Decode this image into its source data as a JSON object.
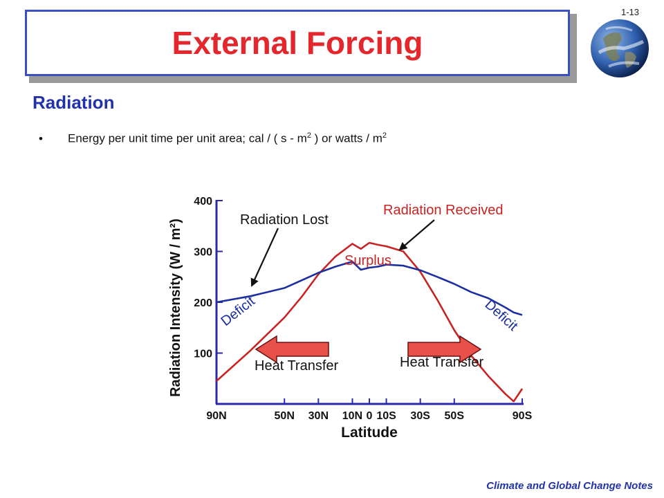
{
  "slide": {
    "title": "External Forcing",
    "number": "1-13",
    "subtitle": "Radiation",
    "bullet": {
      "text_a": "Energy per unit time per unit area; cal / ( s - m",
      "sup_a": "2",
      "text_b": " ) or watts / m",
      "sup_b": "2"
    },
    "footer": "Climate and Global Change Notes",
    "logo_icon": "earth-globe-icon"
  },
  "colors": {
    "title": "#e4262d",
    "title_border": "#3a4fc4",
    "subtitle": "#2233aa",
    "received": "#c82323",
    "lost": "#1c2f9e",
    "axis": "#2a2aa8",
    "arrow": "#e8504a"
  },
  "chart_data": {
    "type": "line",
    "xlabel": "Latitude",
    "ylabel": "Radiation Intensity (W / m²)",
    "ylim": [
      0,
      400
    ],
    "yticks": [
      "100",
      "200",
      "300",
      "400"
    ],
    "ytick_values": [
      100,
      200,
      300,
      400
    ],
    "x": [
      -90,
      -70,
      -50,
      -40,
      -30,
      -20,
      -10,
      -5,
      0,
      5,
      10,
      20,
      30,
      40,
      50,
      60,
      70,
      80,
      85,
      90
    ],
    "xticks": [
      "90N",
      "50N",
      "30N",
      "10N",
      "0",
      "10S",
      "30S",
      "50S",
      "90S"
    ],
    "xtick_values": [
      -90,
      -50,
      -30,
      -10,
      0,
      10,
      30,
      50,
      90
    ],
    "series": [
      {
        "name": "Radiation Received",
        "values": [
          45,
          105,
          170,
          210,
          255,
          290,
          315,
          305,
          317,
          313,
          310,
          300,
          260,
          205,
          145,
          95,
          55,
          20,
          5,
          30
        ]
      },
      {
        "name": "Radiation Lost",
        "values": [
          200,
          212,
          228,
          243,
          258,
          270,
          280,
          264,
          268,
          270,
          274,
          272,
          263,
          250,
          236,
          220,
          208,
          190,
          180,
          175
        ]
      }
    ],
    "annotations": {
      "lost_label": "Radiation Lost",
      "received_label": "Radiation Received",
      "surplus": "Surplus",
      "deficit_left": "Deficit",
      "deficit_right": "Deficit",
      "heat_left": "Heat Transfer",
      "heat_right": "Heat Transfer"
    }
  }
}
